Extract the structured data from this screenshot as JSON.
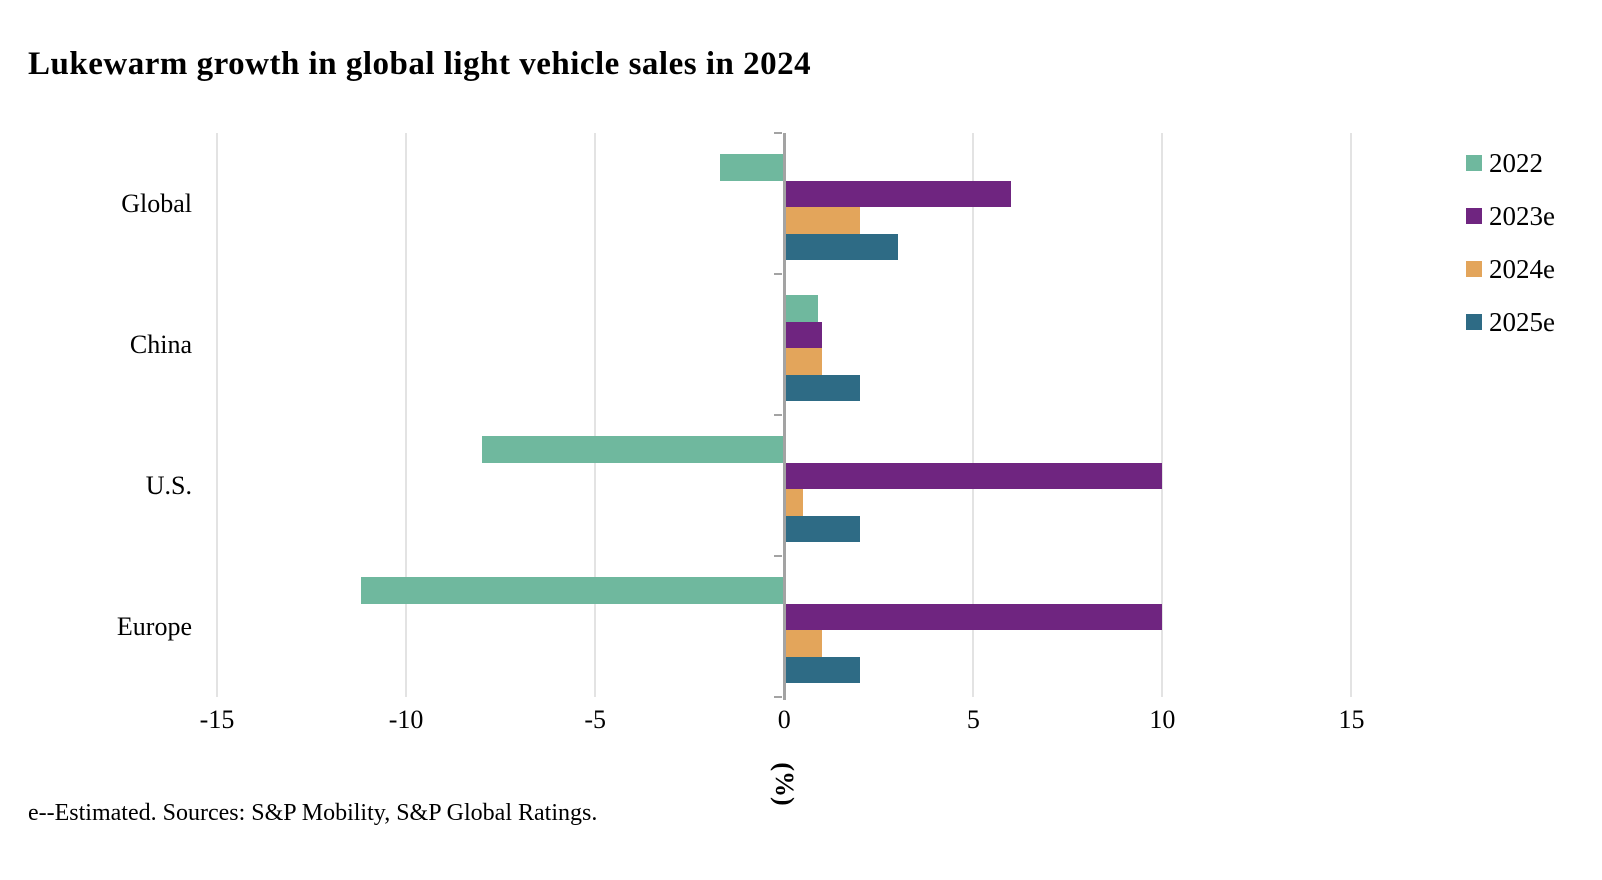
{
  "title": "Lukewarm growth in global light vehicle sales in 2024",
  "footnote": "e--Estimated. Sources: S&P Mobility, S&P Global Ratings.",
  "chart_data": {
    "type": "bar",
    "orientation": "horizontal",
    "title": "Lukewarm growth in global light vehicle sales in 2024",
    "categories": [
      "Global",
      "China",
      "U.S.",
      "Europe"
    ],
    "series": [
      {
        "name": "2022",
        "color": "#6FB89E",
        "values": [
          -1.7,
          0.9,
          -8.0,
          -11.2
        ]
      },
      {
        "name": "2023e",
        "color": "#6F2580",
        "values": [
          6,
          1,
          10,
          10
        ]
      },
      {
        "name": "2024e",
        "color": "#E3A55B",
        "values": [
          2,
          1,
          0.5,
          1
        ]
      },
      {
        "name": "2025e",
        "color": "#2E6B85",
        "values": [
          3,
          2,
          2,
          2
        ]
      }
    ],
    "xlabel": "(%)",
    "xticks": [
      -15,
      -10,
      -5,
      0,
      5,
      10,
      15
    ],
    "xlim": [
      -15.45,
      16.6
    ],
    "grid": true,
    "legend_position": "right",
    "colors": {
      "gridline": "#E3E3E3",
      "axis": "#A3A3A3",
      "text": "#000000"
    }
  }
}
